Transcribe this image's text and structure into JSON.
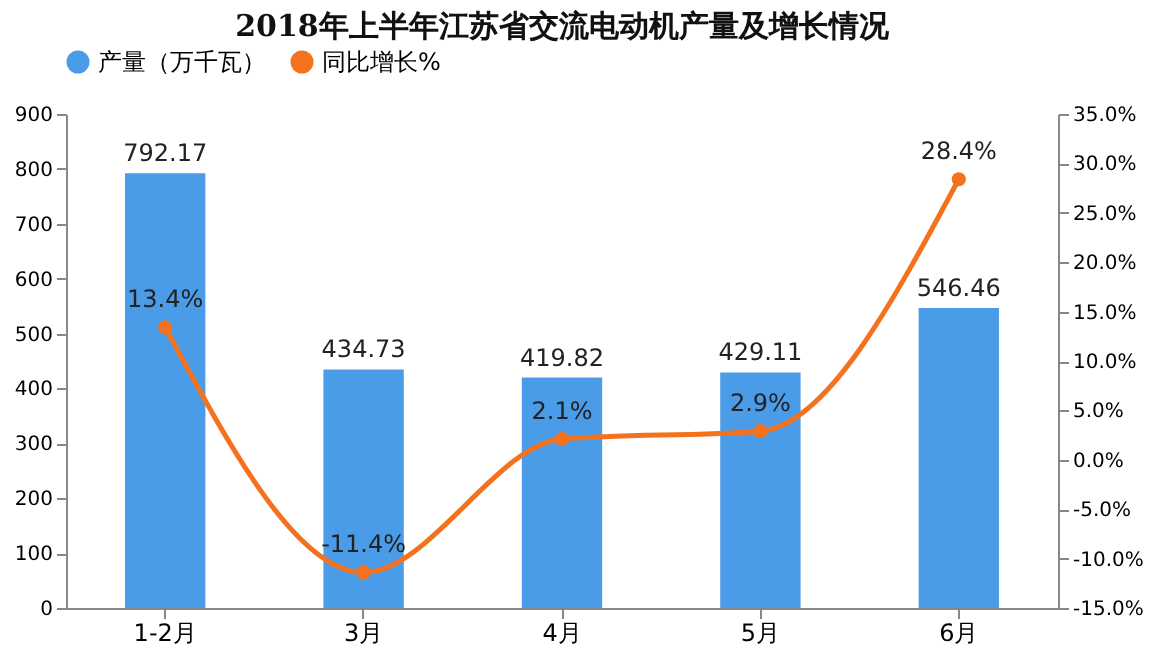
{
  "chart_data": {
    "type": "bar",
    "title": "2018年上半年江苏省交流电动机产量及增长情况",
    "categories": [
      "1-2月",
      "3月",
      "4月",
      "5月",
      "6月"
    ],
    "series": [
      {
        "name": "产量（万千瓦）",
        "color": "#4a9be8",
        "values": [
          792.17,
          434.73,
          419.82,
          429.11,
          546.46
        ],
        "value_labels": [
          "792.17",
          "434.73",
          "419.82",
          "429.11",
          "546.46"
        ]
      },
      {
        "name": "同比增长%",
        "type": "line",
        "axis": "y2",
        "color": "#f4721e",
        "values": [
          13.4,
          -11.4,
          2.1,
          2.9,
          28.4
        ],
        "value_labels": [
          "13.4%",
          "-11.4%",
          "2.1%",
          "2.9%",
          "28.4%"
        ]
      }
    ],
    "ylim": [
      0,
      900
    ],
    "yticks": [
      0,
      100,
      200,
      300,
      400,
      500,
      600,
      700,
      800,
      900
    ],
    "y2lim": [
      -15,
      35
    ],
    "y2ticks": [
      {
        "value": -15,
        "label": "-15.0%"
      },
      {
        "value": -10,
        "label": "-10.0%"
      },
      {
        "value": -5,
        "label": "-5.0%"
      },
      {
        "value": 0,
        "label": "0.0%"
      },
      {
        "value": 5,
        "label": "5.0%"
      },
      {
        "value": 10,
        "label": "10.0%"
      },
      {
        "value": 15,
        "label": "15.0%"
      },
      {
        "value": 20,
        "label": "20.0%"
      },
      {
        "value": 25,
        "label": "25.0%"
      },
      {
        "value": 30,
        "label": "30.0%"
      },
      {
        "value": 35,
        "label": "35.0%"
      }
    ],
    "legend": "top",
    "marker": "circle",
    "grid": false
  }
}
